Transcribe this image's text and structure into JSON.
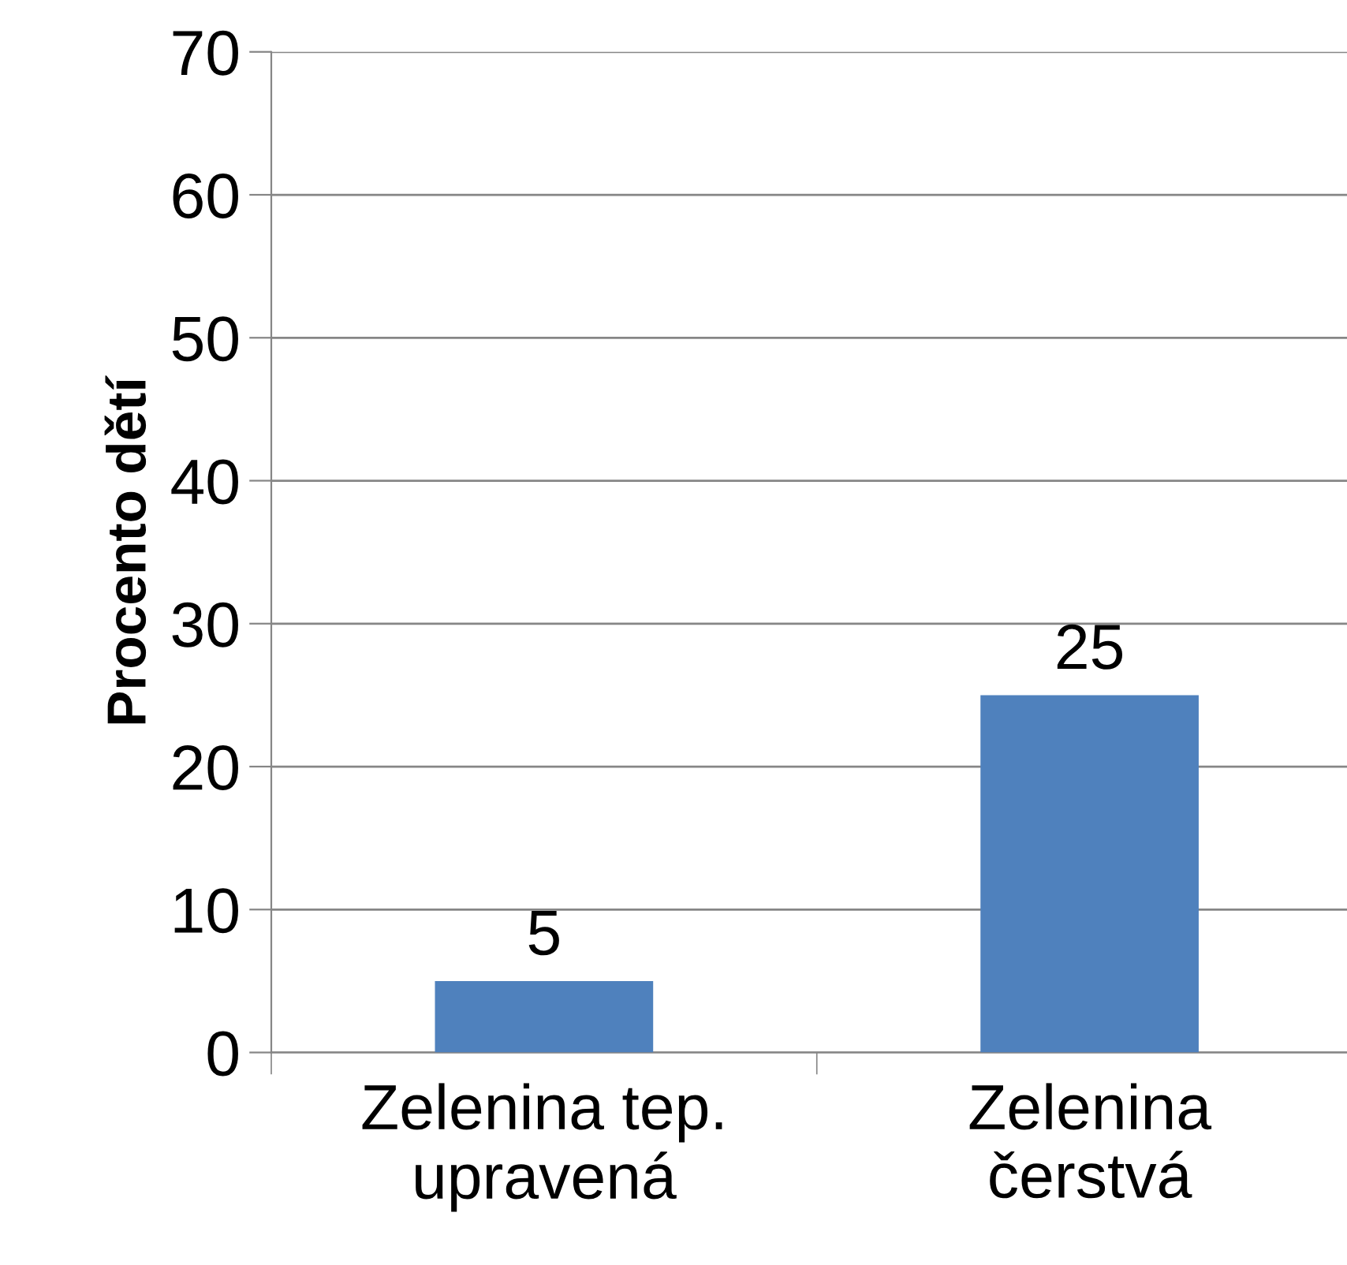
{
  "chart_data": {
    "type": "bar",
    "ylabel": "Procento dětí",
    "categories": [
      "Zelenina tep.\nupravená",
      "Zelenina\nčerstvá"
    ],
    "values": [
      5,
      25
    ],
    "color": "#4f81bd",
    "ylim": [
      0,
      70
    ],
    "yticks": [
      0,
      10,
      20,
      30,
      40,
      50,
      60,
      70
    ],
    "grid": "y",
    "data_labels": true
  }
}
